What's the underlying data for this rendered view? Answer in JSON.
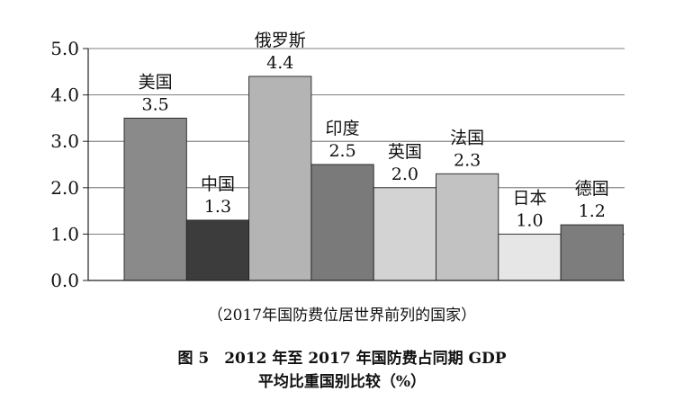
{
  "chart_data": {
    "type": "bar",
    "categories": [
      "美国",
      "中国",
      "俄罗斯",
      "印度",
      "英国",
      "法国",
      "日本",
      "德国"
    ],
    "values": [
      3.5,
      1.3,
      4.4,
      2.5,
      2.0,
      2.3,
      1.0,
      1.2
    ],
    "value_labels": [
      "3.5",
      "1.3",
      "4.4",
      "2.5",
      "2.0",
      "2.3",
      "1.0",
      "1.2"
    ],
    "colors": [
      "#8a8a8a",
      "#3c3c3c",
      "#b4b4b4",
      "#7a7a7a",
      "#d3d3d3",
      "#c2c2c2",
      "#e6e6e6",
      "#7d7d7d"
    ],
    "yticks": [
      "0.0",
      "1.0",
      "2.0",
      "3.0",
      "4.0",
      "5.0"
    ],
    "ylim": [
      0,
      5
    ],
    "grid": true,
    "legend": "none"
  },
  "chart_note": "（2017年国防费位居世界前列的国家）",
  "caption": {
    "line1": "图 5　2012 年至 2017 年国防费占同期 GDP",
    "line2": "平均比重国别比较（%）"
  }
}
